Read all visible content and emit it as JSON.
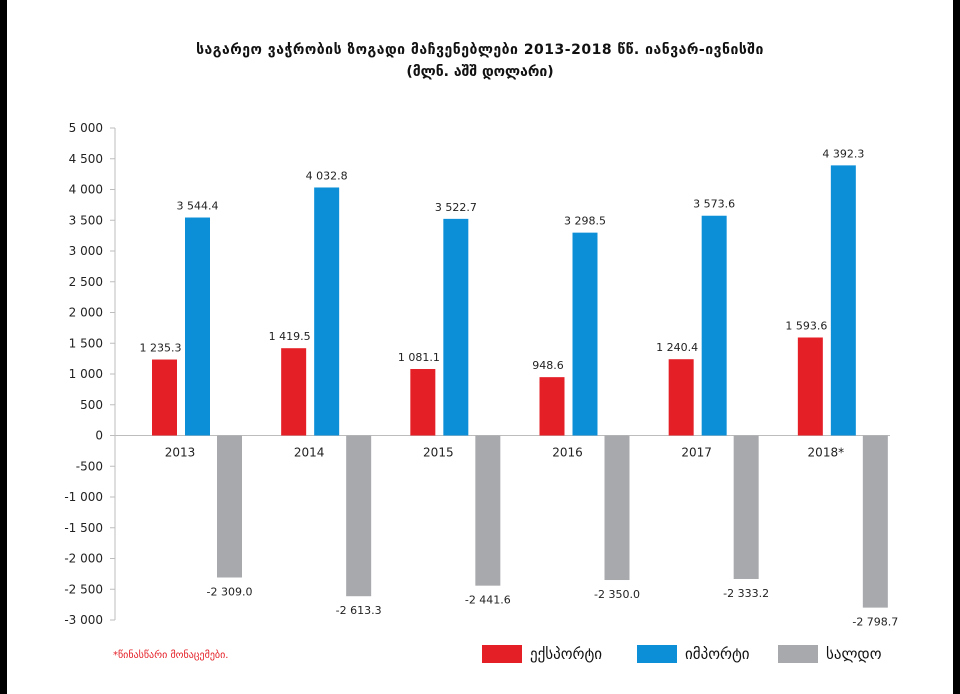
{
  "title": "საგარეო ვაჭრობის ზოგადი მაჩვენებლები 2013-2018 წწ. იანვარ-ივნისში",
  "subtitle": "(მლნ. აშშ დოლარი)",
  "note": "*წინასწარი მონაცემები.",
  "colors": {
    "export": "#e41f26",
    "import": "#0d8fd8",
    "saldo": "#a8a9ad"
  },
  "chart_data": {
    "type": "bar",
    "categories": [
      "2013",
      "2014",
      "2015",
      "2016",
      "2017",
      "2018*"
    ],
    "series": [
      {
        "name": "ექსპორტი",
        "values": [
          1235.3,
          1419.5,
          1081.1,
          948.6,
          1240.4,
          1593.6
        ],
        "labels": [
          "1 235.3",
          "1 419.5",
          "1 081.1",
          "948.6",
          "1 240.4",
          "1 593.6"
        ],
        "color_key": "export"
      },
      {
        "name": "იმპორტი",
        "values": [
          3544.4,
          4032.8,
          3522.7,
          3298.5,
          3573.6,
          4392.3
        ],
        "labels": [
          "3 544.4",
          "4 032.8",
          "3 522.7",
          "3 298.5",
          "3 573.6",
          "4 392.3"
        ],
        "color_key": "import"
      },
      {
        "name": "სალდო",
        "values": [
          -2309.0,
          -2613.3,
          -2441.6,
          -2350.0,
          -2333.2,
          -2798.7
        ],
        "labels": [
          "-2 309.0",
          "-2 613.3",
          "-2 441.6",
          "-2 350.0",
          "-2 333.2",
          "-2 798.7"
        ],
        "color_key": "saldo"
      }
    ],
    "ylim": [
      -3000,
      5000
    ],
    "yticks": [
      5000,
      4500,
      4000,
      3500,
      3000,
      2500,
      2000,
      1500,
      1000,
      500,
      0,
      -500,
      -1000,
      -1500,
      -2000,
      -2500,
      -3000
    ],
    "ytick_labels": [
      "5 000",
      "4 500",
      "4 000",
      "3 500",
      "3 000",
      "2 500",
      "2 000",
      "1 500",
      "1 000",
      "500",
      "0",
      "-500",
      "-1 000",
      "-1 500",
      "-2 000",
      "-2 500",
      "-3 000"
    ],
    "grid": false,
    "legend_position": "bottom-right"
  }
}
